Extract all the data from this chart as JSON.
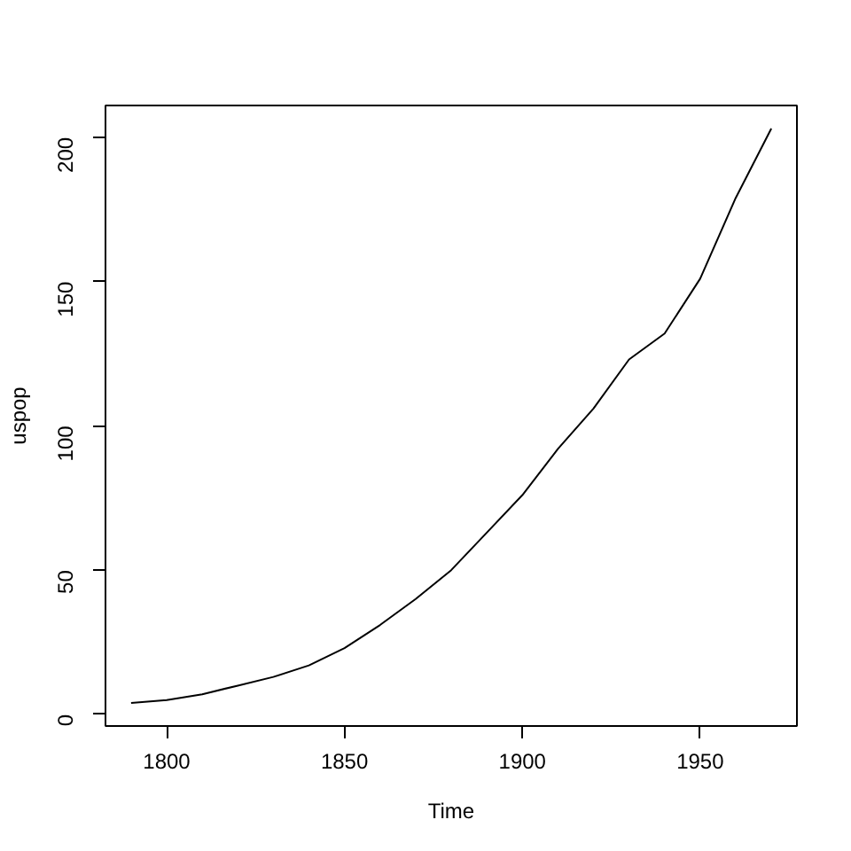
{
  "chart_data": {
    "type": "line",
    "xlabel": "Time",
    "ylabel": "uspop",
    "x": [
      1790,
      1800,
      1810,
      1820,
      1830,
      1840,
      1850,
      1860,
      1870,
      1880,
      1890,
      1900,
      1910,
      1920,
      1930,
      1940,
      1950,
      1960,
      1970
    ],
    "series": [
      {
        "color": "#000000",
        "values": [
          4,
          5,
          7,
          10,
          13,
          17,
          23,
          31,
          40,
          50,
          63,
          76,
          92,
          106,
          123,
          132,
          151,
          179,
          203
        ]
      }
    ],
    "xlim": [
      1782.8,
      1977.2
    ],
    "ylim": [
      -4,
      211
    ],
    "xticks": [
      1800,
      1850,
      1900,
      1950
    ],
    "yticks": [
      0,
      50,
      100,
      150,
      200
    ],
    "grid": false,
    "marker": "none",
    "line_style": "solid"
  }
}
